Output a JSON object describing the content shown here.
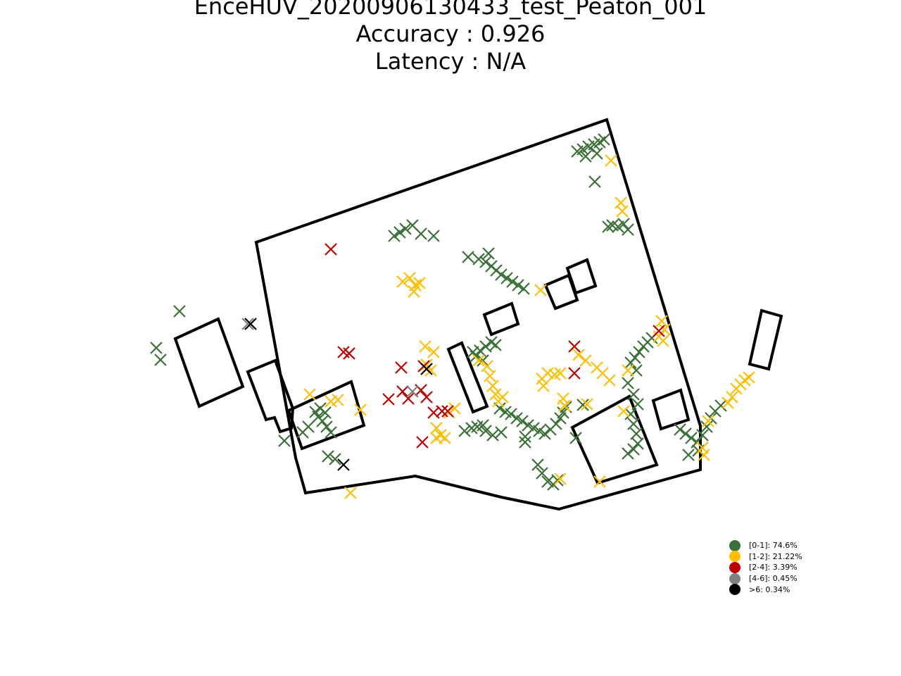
{
  "title": {
    "line1": "EnceHUV_20200906130433_test_Peaton_001",
    "line2": "Accuracy : 0.926",
    "line3": "Latency : N/A"
  },
  "legend": [
    {
      "label": "[0-1]: 74.6%",
      "color": "#3a7136"
    },
    {
      "label": "[1-2]: 21.22%",
      "color": "#ffbf00"
    },
    {
      "label": "[2-4]: 3.39%",
      "color": "#bf0000"
    },
    {
      "label": "[4-6]: 0.45%",
      "color": "#808080"
    },
    {
      "label": ">6: 0.34%",
      "color": "#000000"
    }
  ],
  "chart_data": {
    "type": "scatter",
    "marker": "x",
    "grid": false,
    "axes_visible": false,
    "legend_position": "bottom-right",
    "series": [
      {
        "name": "[0-1]: 74.6%",
        "color": "#3a7136",
        "points": [
          [
            820,
            215
          ],
          [
            828,
            212
          ],
          [
            836,
            208
          ],
          [
            844,
            205
          ],
          [
            852,
            202
          ],
          [
            858,
            198
          ],
          [
            848,
            218
          ],
          [
            832,
            222
          ],
          [
            845,
            258
          ],
          [
            870,
            320
          ],
          [
            878,
            322
          ],
          [
            886,
            318
          ],
          [
            892,
            326
          ],
          [
            864,
            322
          ],
          [
            560,
            335
          ],
          [
            568,
            330
          ],
          [
            576,
            325
          ],
          [
            586,
            320
          ],
          [
            598,
            332
          ],
          [
            616,
            335
          ],
          [
            665,
            365
          ],
          [
            680,
            368
          ],
          [
            690,
            372
          ],
          [
            698,
            378
          ],
          [
            705,
            384
          ],
          [
            712,
            390
          ],
          [
            720,
            395
          ],
          [
            728,
            400
          ],
          [
            736,
            405
          ],
          [
            744,
            410
          ],
          [
            694,
            360
          ],
          [
            682,
            498
          ],
          [
            690,
            492
          ],
          [
            698,
            486
          ],
          [
            704,
            490
          ],
          [
            676,
            506
          ],
          [
            686,
            512
          ],
          [
            672,
            500
          ],
          [
            710,
            580
          ],
          [
            718,
            585
          ],
          [
            726,
            588
          ],
          [
            734,
            594
          ],
          [
            742,
            598
          ],
          [
            750,
            604
          ],
          [
            758,
            608
          ],
          [
            766,
            612
          ],
          [
            774,
            616
          ],
          [
            782,
            610
          ],
          [
            790,
            602
          ],
          [
            796,
            594
          ],
          [
            800,
            586
          ],
          [
            804,
            578
          ],
          [
            746,
            628
          ],
          [
            746,
            620
          ],
          [
            660,
            612
          ],
          [
            670,
            608
          ],
          [
            678,
            606
          ],
          [
            690,
            612
          ],
          [
            700,
            618
          ],
          [
            712,
            614
          ],
          [
            686,
            604
          ],
          [
            764,
            660
          ],
          [
            770,
            672
          ],
          [
            778,
            684
          ],
          [
            786,
            688
          ],
          [
            792,
            682
          ],
          [
            818,
            622
          ],
          [
            828,
            575
          ],
          [
            896,
            515
          ],
          [
            902,
            508
          ],
          [
            908,
            500
          ],
          [
            914,
            492
          ],
          [
            920,
            486
          ],
          [
            926,
            480
          ],
          [
            904,
            526
          ],
          [
            892,
            544
          ],
          [
            900,
            560
          ],
          [
            906,
            574
          ],
          [
            896,
            588
          ],
          [
            900,
            602
          ],
          [
            904,
            616
          ],
          [
            906,
            630
          ],
          [
            900,
            638
          ],
          [
            892,
            644
          ],
          [
            966,
            610
          ],
          [
            974,
            616
          ],
          [
            982,
            622
          ],
          [
            990,
            628
          ],
          [
            998,
            618
          ],
          [
            1004,
            606
          ],
          [
            1010,
            594
          ],
          [
            1016,
            584
          ],
          [
            1024,
            576
          ],
          [
            978,
            646
          ],
          [
            992,
            640
          ],
          [
            455,
            580
          ],
          [
            462,
            586
          ],
          [
            452,
            592
          ],
          [
            458,
            598
          ],
          [
            464,
            606
          ],
          [
            470,
            614
          ],
          [
            438,
            606
          ],
          [
            430,
            614
          ],
          [
            404,
            626
          ],
          [
            466,
            648
          ],
          [
            476,
            652
          ],
          [
            448,
            585
          ],
          [
            255,
            442
          ],
          [
            222,
            494
          ],
          [
            228,
            511
          ]
        ]
      },
      {
        "name": "[1-2]: 21.22%",
        "color": "#ffbf00",
        "points": [
          [
            868,
            228
          ],
          [
            882,
            288
          ],
          [
            884,
            300
          ],
          [
            572,
            400
          ],
          [
            582,
            395
          ],
          [
            590,
            405
          ],
          [
            588,
            414
          ],
          [
            596,
            402
          ],
          [
            768,
            412
          ],
          [
            604,
            492
          ],
          [
            616,
            500
          ],
          [
            606,
            518
          ],
          [
            612,
            526
          ],
          [
            680,
            512
          ],
          [
            692,
            520
          ],
          [
            696,
            534
          ],
          [
            700,
            548
          ],
          [
            704,
            560
          ],
          [
            708,
            570
          ],
          [
            714,
            564
          ],
          [
            770,
            538
          ],
          [
            778,
            530
          ],
          [
            788,
            532
          ],
          [
            796,
            530
          ],
          [
            772,
            548
          ],
          [
            800,
            566
          ],
          [
            802,
            576
          ],
          [
            822,
            504
          ],
          [
            832,
            512
          ],
          [
            848,
            522
          ],
          [
            856,
            530
          ],
          [
            866,
            540
          ],
          [
            892,
            526
          ],
          [
            886,
            584
          ],
          [
            834,
            574
          ],
          [
            940,
            456
          ],
          [
            944,
            468
          ],
          [
            936,
            478
          ],
          [
            942,
            484
          ],
          [
            1040,
            564
          ],
          [
            1046,
            552
          ],
          [
            1052,
            546
          ],
          [
            1058,
            540
          ],
          [
            1064,
            536
          ],
          [
            1034,
            572
          ],
          [
            1006,
            598
          ],
          [
            998,
            636
          ],
          [
            1000,
            646
          ],
          [
            620,
            608
          ],
          [
            626,
            618
          ],
          [
            632,
            622
          ],
          [
            620,
            622
          ],
          [
            638,
            586
          ],
          [
            646,
            580
          ],
          [
            470,
            570
          ],
          [
            480,
            568
          ],
          [
            440,
            560
          ],
          [
            512,
            582
          ],
          [
            498,
            700
          ],
          [
            796,
            680
          ],
          [
            852,
            684
          ]
        ]
      },
      {
        "name": "[2-4]: 3.39%",
        "color": "#bf0000",
        "points": [
          [
            470,
            354
          ],
          [
            488,
            500
          ],
          [
            496,
            502
          ],
          [
            570,
            522
          ],
          [
            602,
            520
          ],
          [
            816,
            492
          ],
          [
            816,
            530
          ],
          [
            552,
            567
          ],
          [
            572,
            556
          ],
          [
            580,
            566
          ],
          [
            598,
            554
          ],
          [
            606,
            564
          ],
          [
            616,
            586
          ],
          [
            628,
            584
          ],
          [
            636,
            584
          ],
          [
            600,
            628
          ],
          [
            936,
            470
          ]
        ]
      },
      {
        "name": "[4-6]: 0.45%",
        "color": "#808080",
        "points": [
          [
            352,
            460
          ],
          [
            586,
            556
          ]
        ]
      },
      {
        "name": ">6: 0.34%",
        "color": "#000000",
        "points": [
          [
            356,
            460
          ],
          [
            606,
            524
          ],
          [
            488,
            660
          ]
        ]
      }
    ]
  }
}
